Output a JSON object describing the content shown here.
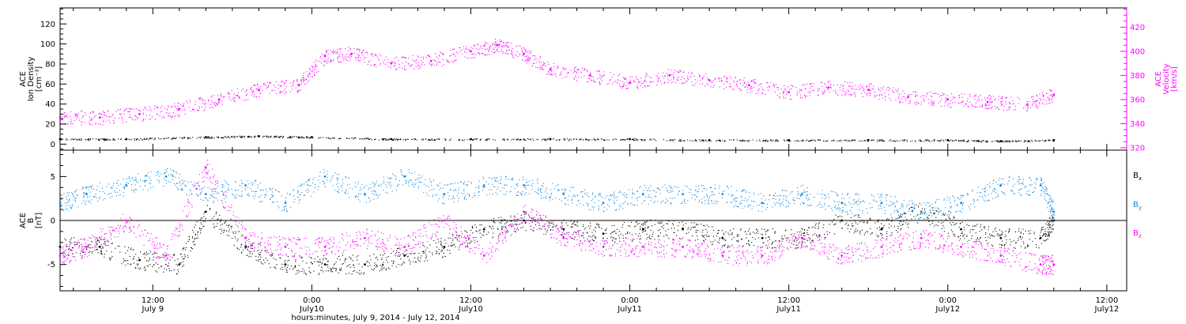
{
  "figure": {
    "x_title": "hours:minutes, July  9, 2014 - July 12, 2014",
    "x_ticks": [
      {
        "time": "12:00",
        "date": "July 9"
      },
      {
        "time": "0:00",
        "date": "July10"
      },
      {
        "time": "12:00",
        "date": "July10"
      },
      {
        "time": "0:00",
        "date": "July11"
      },
      {
        "time": "12:00",
        "date": "July11"
      },
      {
        "time": "0:00",
        "date": "July12"
      },
      {
        "time": "12:00",
        "date": "July12"
      }
    ]
  },
  "colors": {
    "black": "#000000",
    "magenta": "#ff00ff",
    "blue": "#1188dd"
  },
  "chart_data": [
    {
      "type": "scatter",
      "title": "",
      "xlabel": "hours:minutes, July  9, 2014 - July 12, 2014",
      "xlim": [
        "2014-07-09 05:00",
        "2014-07-12 13:30"
      ],
      "ylabel_lines": [
        "ACE",
        "Ion Density",
        "[cm⁻³]"
      ],
      "ylim": [
        -6,
        136
      ],
      "yticks": [
        0,
        20,
        40,
        60,
        80,
        100,
        120
      ],
      "y2label_lines": [
        "ACE",
        "Velocity",
        "[km/s]"
      ],
      "y2lim": [
        318,
        436
      ],
      "y2ticks": [
        320,
        340,
        360,
        380,
        400,
        420
      ],
      "zero_line": false,
      "series": [
        {
          "name": "",
          "axis": "left",
          "color": "#000000",
          "x": [
            "2014-07-09 05:00",
            "2014-07-09 10:00",
            "2014-07-09 16:00",
            "2014-07-09 20:00",
            "2014-07-10 00:00",
            "2014-07-10 06:00",
            "2014-07-10 12:00",
            "2014-07-10 18:00",
            "2014-07-11 00:00",
            "2014-07-11 06:00",
            "2014-07-11 12:00",
            "2014-07-11 18:00",
            "2014-07-12 00:00",
            "2014-07-12 04:00",
            "2014-07-12 08:00"
          ],
          "values": [
            5,
            5,
            7,
            8,
            7,
            5,
            5,
            5,
            5,
            4,
            4,
            4,
            4,
            3,
            4
          ]
        },
        {
          "name": "",
          "axis": "right",
          "color": "#ff00ff",
          "x": [
            "2014-07-09 05:00",
            "2014-07-09 08:00",
            "2014-07-09 11:00",
            "2014-07-09 14:00",
            "2014-07-09 17:00",
            "2014-07-09 20:00",
            "2014-07-09 23:00",
            "2014-07-10 01:00",
            "2014-07-10 03:00",
            "2014-07-10 06:00",
            "2014-07-10 09:00",
            "2014-07-10 12:00",
            "2014-07-10 14:00",
            "2014-07-10 16:00",
            "2014-07-10 18:00",
            "2014-07-10 21:00",
            "2014-07-11 00:00",
            "2014-07-11 03:00",
            "2014-07-11 06:00",
            "2014-07-11 09:00",
            "2014-07-11 12:00",
            "2014-07-11 15:00",
            "2014-07-11 18:00",
            "2014-07-11 21:00",
            "2014-07-12 00:00",
            "2014-07-12 03:00",
            "2014-07-12 06:00",
            "2014-07-12 08:00"
          ],
          "values": [
            345,
            345,
            348,
            352,
            360,
            368,
            372,
            396,
            398,
            390,
            392,
            400,
            405,
            398,
            385,
            380,
            374,
            380,
            376,
            372,
            366,
            370,
            368,
            362,
            360,
            358,
            356,
            364
          ]
        }
      ]
    },
    {
      "type": "scatter",
      "title": "",
      "xlabel": "",
      "xlim": [
        "2014-07-09 05:00",
        "2014-07-12 13:30"
      ],
      "ylabel_lines": [
        "ACE",
        "B",
        "[nT]"
      ],
      "ylim": [
        -8,
        8
      ],
      "yticks": [
        -5,
        0,
        5
      ],
      "zero_line": true,
      "series": [
        {
          "name": "Bx",
          "name_base": "B",
          "name_sub": "x",
          "color": "#000000",
          "x": [
            "2014-07-09 05:00",
            "2014-07-09 08:00",
            "2014-07-09 11:00",
            "2014-07-09 14:00",
            "2014-07-09 16:00",
            "2014-07-09 19:00",
            "2014-07-09 22:00",
            "2014-07-10 01:00",
            "2014-07-10 04:00",
            "2014-07-10 07:00",
            "2014-07-10 10:00",
            "2014-07-10 13:00",
            "2014-07-10 16:00",
            "2014-07-10 19:00",
            "2014-07-10 22:00",
            "2014-07-11 01:00",
            "2014-07-11 04:00",
            "2014-07-11 07:00",
            "2014-07-11 10:00",
            "2014-07-11 13:00",
            "2014-07-11 16:00",
            "2014-07-11 19:00",
            "2014-07-11 22:00",
            "2014-07-12 01:00",
            "2014-07-12 04:00",
            "2014-07-12 07:00",
            "2014-07-12 08:00"
          ],
          "values": [
            -3,
            -3,
            -4.5,
            -5,
            1,
            -3,
            -5,
            -5,
            -5,
            -4,
            -3,
            -1,
            0,
            -1,
            -1.5,
            -1,
            -1,
            -2,
            -2,
            -2,
            0,
            -1,
            1,
            -1,
            -2,
            -2,
            0
          ]
        },
        {
          "name": "By",
          "name_base": "B",
          "name_sub": "y",
          "color": "#1188dd",
          "x": [
            "2014-07-09 05:00",
            "2014-07-09 07:00",
            "2014-07-09 10:00",
            "2014-07-09 13:00",
            "2014-07-09 16:00",
            "2014-07-09 19:00",
            "2014-07-09 22:00",
            "2014-07-10 01:00",
            "2014-07-10 04:00",
            "2014-07-10 07:00",
            "2014-07-10 10:00",
            "2014-07-10 13:00",
            "2014-07-10 16:00",
            "2014-07-10 19:00",
            "2014-07-10 22:00",
            "2014-07-11 01:00",
            "2014-07-11 04:00",
            "2014-07-11 07:00",
            "2014-07-11 10:00",
            "2014-07-11 13:00",
            "2014-07-11 16:00",
            "2014-07-11 19:00",
            "2014-07-11 22:00",
            "2014-07-12 01:00",
            "2014-07-12 04:00",
            "2014-07-12 07:00",
            "2014-07-12 08:00"
          ],
          "values": [
            2,
            3,
            4,
            5,
            3,
            4,
            2,
            5,
            3,
            5,
            3,
            4,
            4,
            3,
            2,
            3,
            3,
            3,
            2,
            3,
            2,
            2,
            1,
            2,
            4,
            4,
            1
          ]
        },
        {
          "name": "Bz",
          "name_base": "B",
          "name_sub": "z",
          "color": "#ff00ff",
          "x": [
            "2014-07-09 05:00",
            "2014-07-09 07:00",
            "2014-07-09 10:00",
            "2014-07-09 13:00",
            "2014-07-09 16:00",
            "2014-07-09 19:00",
            "2014-07-09 22:00",
            "2014-07-10 01:00",
            "2014-07-10 04:00",
            "2014-07-10 07:00",
            "2014-07-10 10:00",
            "2014-07-10 13:00",
            "2014-07-10 16:00",
            "2014-07-10 19:00",
            "2014-07-10 22:00",
            "2014-07-11 01:00",
            "2014-07-11 04:00",
            "2014-07-11 07:00",
            "2014-07-11 10:00",
            "2014-07-11 13:00",
            "2014-07-11 16:00",
            "2014-07-11 19:00",
            "2014-07-11 22:00",
            "2014-07-12 01:00",
            "2014-07-12 04:00",
            "2014-07-12 07:00",
            "2014-07-12 08:00"
          ],
          "values": [
            -4,
            -3,
            0,
            -4,
            6,
            -2,
            -3,
            -3,
            -2,
            -3,
            0,
            -4,
            1,
            -2,
            -3,
            -3,
            -3,
            -4,
            -4,
            -2,
            -4,
            -3,
            -2,
            -3,
            -4,
            -5,
            -5
          ]
        }
      ]
    }
  ]
}
